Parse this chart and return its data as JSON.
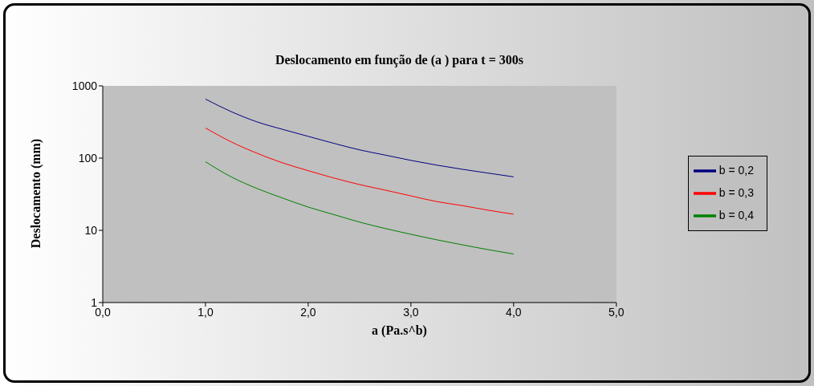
{
  "chart_data": {
    "type": "line",
    "title": "Deslocamento em função de (a ) para t = 300s",
    "xlabel": "a  (Pa.s^b)",
    "ylabel": "Deslocamento (mm)",
    "x": [
      1,
      1.25,
      1.5,
      1.75,
      2,
      2.25,
      2.5,
      2.75,
      3,
      3.25,
      3.5,
      3.75,
      4
    ],
    "series": [
      {
        "name": "b = 0,2",
        "color": "#000080",
        "values": [
          656,
          440,
          318,
          250,
          200,
          160,
          130,
          110,
          93,
          80,
          70,
          62,
          55
        ]
      },
      {
        "name": "b = 0,3",
        "color": "#ff0000",
        "values": [
          261,
          168,
          117,
          86,
          67,
          53,
          43,
          36,
          30,
          25,
          22,
          19,
          16.7
        ]
      },
      {
        "name": "b = 0,4",
        "color": "#008000",
        "values": [
          89,
          55,
          38,
          28,
          21,
          16.5,
          13,
          10.6,
          8.8,
          7.4,
          6.3,
          5.4,
          4.7
        ]
      }
    ],
    "xlim": [
      0,
      5
    ],
    "xticks": [
      {
        "value": 0,
        "label": "0,0"
      },
      {
        "value": 1,
        "label": "1,0"
      },
      {
        "value": 2,
        "label": "2,0"
      },
      {
        "value": 3,
        "label": "3,0"
      },
      {
        "value": 4,
        "label": "4,0"
      },
      {
        "value": 5,
        "label": "5,0"
      }
    ],
    "ylim": [
      1,
      1000
    ],
    "yticks": [
      1,
      10,
      100,
      1000
    ],
    "log": "y",
    "legend": "right",
    "marker": "none",
    "line_style": "solid",
    "grid": false
  }
}
